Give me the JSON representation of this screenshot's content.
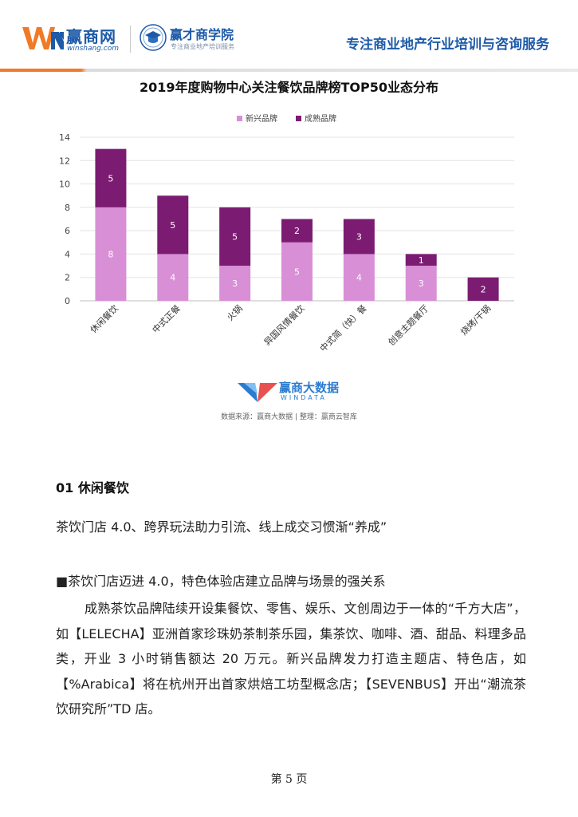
{
  "header": {
    "brand_name": "赢商网",
    "brand_url": "winshang.com",
    "academy_name": "赢才商学院",
    "academy_sub": "专注商业地产培训服务",
    "tagline": "专注商业地产行业培训与咨询服务",
    "accent_color": "#f07a26",
    "brand_color": "#1e5aa8"
  },
  "chart_data": {
    "type": "bar",
    "stacked": true,
    "title": "2019年度购物中心关注餐饮品牌榜TOP50业态分布",
    "categories": [
      "休闲餐饮",
      "中式正餐",
      "火锅",
      "异国风情餐饮",
      "中式简（快）餐",
      "创意主题餐厅",
      "烧烤/干锅"
    ],
    "series": [
      {
        "name": "新兴品牌",
        "values": [
          8,
          4,
          3,
          5,
          4,
          3,
          0
        ],
        "color": "#d88fd6"
      },
      {
        "name": "成熟品牌",
        "values": [
          5,
          5,
          5,
          2,
          3,
          1,
          2
        ],
        "color": "#7b1c72"
      }
    ],
    "ylim": [
      0,
      14
    ],
    "yticks": [
      "0",
      "2",
      "4",
      "6",
      "8",
      "10",
      "12",
      "14"
    ],
    "grid": true,
    "legend_position": "top-center",
    "xlabel": "",
    "ylabel": ""
  },
  "watermark": {
    "name": "赢商大数据",
    "sub": "WINDATA"
  },
  "source": "数据来源：赢商大数据 | 整理：赢商云智库",
  "content": {
    "section_heading": "01  休闲餐饮",
    "subtitle": "茶饮门店 4.0、跨界玩法助力引流、线上成交习惯渐“养成”",
    "subhead": "■茶饮门店迈进 4.0，特色体验店建立品牌与场景的强关系",
    "paragraph": "成熟茶饮品牌陆续开设集餐饮、零售、娱乐、文创周边于一体的“千方大店”，如【LELECHA】亚洲首家珍珠奶茶制茶乐园，集茶饮、咖啡、酒、甜品、料理多品类，开业 3 小时销售额达 20 万元。新兴品牌发力打造主题店、特色店，如【%Arabica】将在杭州开出首家烘焙工坊型概念店；【SEVENBUS】开出“潮流茶饮研究所”TD 店。"
  },
  "footer": {
    "page_number": "第 5 页"
  }
}
